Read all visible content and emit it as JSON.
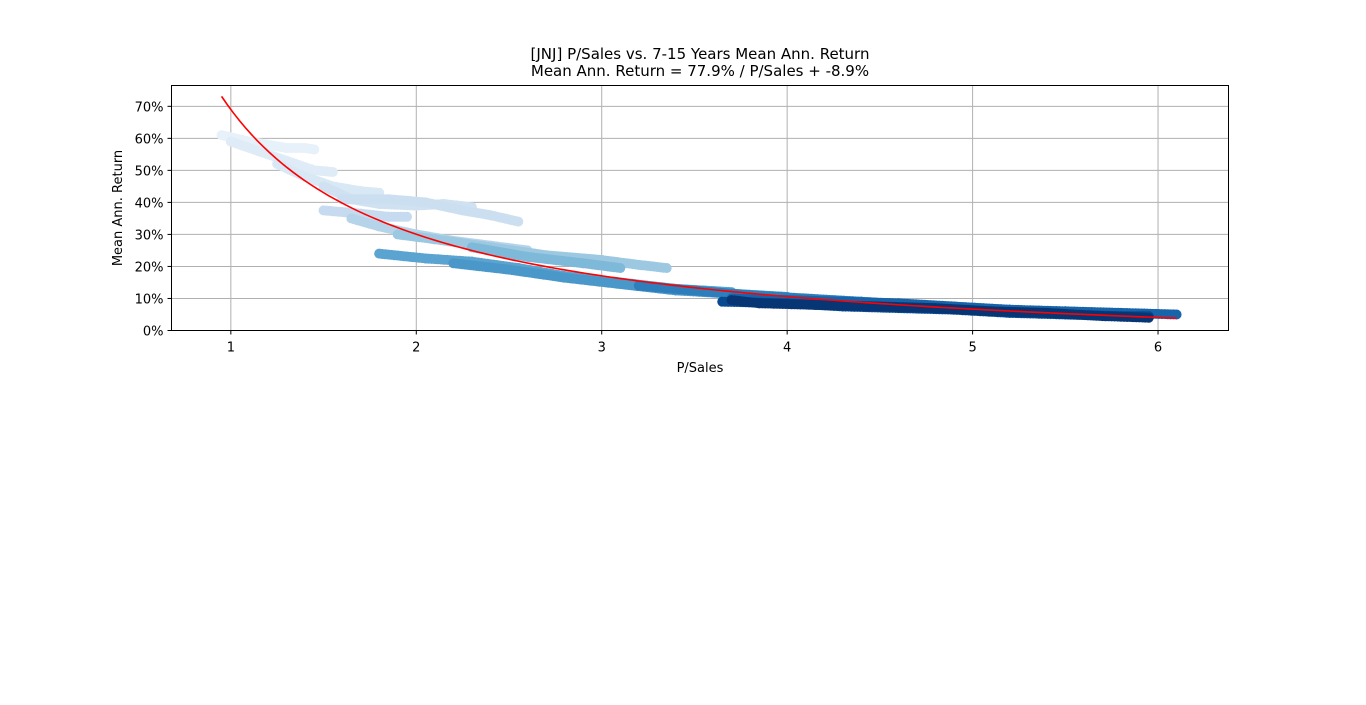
{
  "chart_data": {
    "type": "scatter",
    "title": "[JNJ] P/Sales vs. 7-15 Years Mean Ann. Return",
    "subtitle": "Mean Ann. Return = 77.9% / P/Sales + -8.9%",
    "xlabel": "P/Sales",
    "ylabel": "Mean Ann. Return",
    "xlim": [
      0.68,
      6.38
    ],
    "ylim": [
      0,
      76.5
    ],
    "x_ticks": [
      1,
      2,
      3,
      4,
      5,
      6
    ],
    "y_ticks": [
      0,
      10,
      20,
      30,
      40,
      50,
      60,
      70
    ],
    "y_tick_labels": [
      "0%",
      "10%",
      "20%",
      "30%",
      "40%",
      "50%",
      "60%",
      "70%"
    ],
    "grid": true,
    "colormap": "Blues",
    "fit": {
      "a": 77.9,
      "b": -8.9,
      "x_range": [
        0.95,
        6.1
      ],
      "color": "#ff0000"
    },
    "point_color": "#1f77b4",
    "series": [
      {
        "shade": 0.08,
        "points": [
          [
            0.95,
            61
          ],
          [
            1.1,
            59
          ],
          [
            1.2,
            58
          ],
          [
            1.3,
            57
          ],
          [
            1.4,
            57
          ],
          [
            1.45,
            56.5
          ]
        ]
      },
      {
        "shade": 0.12,
        "points": [
          [
            1.0,
            59
          ],
          [
            1.15,
            56
          ],
          [
            1.3,
            53
          ],
          [
            1.45,
            50
          ],
          [
            1.55,
            49.5
          ]
        ]
      },
      {
        "shade": 0.15,
        "points": [
          [
            1.25,
            52
          ],
          [
            1.4,
            48
          ],
          [
            1.55,
            45
          ],
          [
            1.7,
            43.5
          ],
          [
            1.8,
            43
          ]
        ]
      },
      {
        "shade": 0.2,
        "points": [
          [
            1.5,
            45
          ],
          [
            1.65,
            41
          ],
          [
            1.8,
            39.5
          ],
          [
            2.0,
            39
          ],
          [
            2.15,
            39.5
          ],
          [
            2.3,
            38.5
          ]
        ]
      },
      {
        "shade": 0.22,
        "points": [
          [
            1.6,
            41
          ],
          [
            1.85,
            41
          ],
          [
            2.05,
            40
          ],
          [
            2.25,
            37.5
          ],
          [
            2.4,
            36
          ],
          [
            2.55,
            34
          ]
        ]
      },
      {
        "shade": 0.25,
        "points": [
          [
            1.5,
            37.5
          ],
          [
            1.7,
            36.5
          ],
          [
            1.85,
            35.5
          ],
          [
            1.95,
            35.5
          ]
        ]
      },
      {
        "shade": 0.3,
        "points": [
          [
            1.65,
            35
          ],
          [
            1.8,
            32.5
          ],
          [
            2.0,
            30
          ],
          [
            2.2,
            28
          ],
          [
            2.4,
            26.5
          ],
          [
            2.6,
            25
          ]
        ]
      },
      {
        "shade": 0.38,
        "points": [
          [
            1.9,
            30
          ],
          [
            2.1,
            28.5
          ],
          [
            2.4,
            26
          ],
          [
            2.7,
            23.5
          ],
          [
            3.0,
            22
          ],
          [
            3.2,
            20.5
          ],
          [
            3.35,
            19.5
          ]
        ]
      },
      {
        "shade": 0.45,
        "points": [
          [
            2.3,
            26
          ],
          [
            2.6,
            23
          ],
          [
            2.9,
            21
          ],
          [
            3.1,
            19.5
          ]
        ]
      },
      {
        "shade": 0.55,
        "points": [
          [
            1.8,
            24
          ],
          [
            2.05,
            22.5
          ],
          [
            2.3,
            21.5
          ],
          [
            2.55,
            19.5
          ],
          [
            2.8,
            17
          ],
          [
            3.1,
            15
          ],
          [
            3.4,
            13
          ],
          [
            3.7,
            12
          ]
        ]
      },
      {
        "shade": 0.6,
        "points": [
          [
            2.2,
            21
          ],
          [
            2.5,
            19
          ],
          [
            2.8,
            16.5
          ],
          [
            3.1,
            14.5
          ],
          [
            3.4,
            12.5
          ],
          [
            3.7,
            11.5
          ],
          [
            4.0,
            10.5
          ]
        ]
      },
      {
        "shade": 0.7,
        "points": [
          [
            3.2,
            14
          ],
          [
            3.5,
            12.5
          ],
          [
            3.8,
            11
          ],
          [
            4.1,
            10
          ],
          [
            4.4,
            9
          ],
          [
            4.7,
            8
          ],
          [
            5.0,
            7
          ]
        ]
      },
      {
        "shade": 0.8,
        "points": [
          [
            3.7,
            10
          ],
          [
            4.0,
            9.5
          ],
          [
            4.3,
            9
          ],
          [
            4.6,
            8.5
          ],
          [
            4.9,
            7.5
          ],
          [
            5.2,
            6.5
          ],
          [
            5.5,
            6
          ],
          [
            5.8,
            5.5
          ],
          [
            6.1,
            5
          ]
        ]
      },
      {
        "shade": 0.9,
        "points": [
          [
            3.65,
            9
          ],
          [
            4.0,
            8.5
          ],
          [
            4.3,
            7.5
          ],
          [
            4.6,
            7
          ],
          [
            4.9,
            6.5
          ],
          [
            5.2,
            5.5
          ],
          [
            5.5,
            5
          ],
          [
            5.8,
            4.5
          ],
          [
            5.95,
            4.5
          ]
        ]
      },
      {
        "shade": 0.98,
        "points": [
          [
            3.7,
            9.5
          ],
          [
            3.85,
            8.5
          ],
          [
            4.15,
            8
          ],
          [
            4.5,
            7.5
          ],
          [
            4.8,
            7
          ],
          [
            5.1,
            6
          ],
          [
            5.4,
            5.5
          ],
          [
            5.7,
            4.5
          ],
          [
            5.95,
            4
          ]
        ]
      }
    ]
  }
}
